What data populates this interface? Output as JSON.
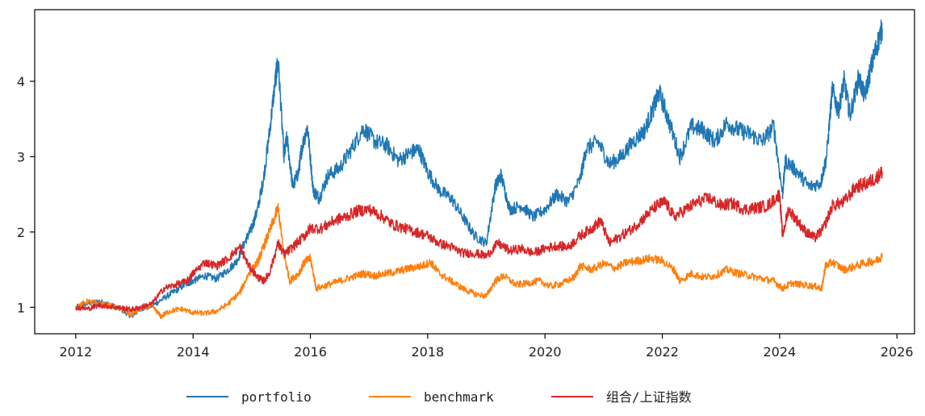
{
  "chart_data": {
    "type": "line",
    "title": "",
    "xlabel": "",
    "ylabel": "",
    "xlim": [
      2011.3,
      2026.3
    ],
    "ylim": [
      0.65,
      4.95
    ],
    "x_ticks": [
      2012,
      2014,
      2016,
      2018,
      2020,
      2022,
      2024,
      2026
    ],
    "x_tick_labels": [
      "2012",
      "2014",
      "2016",
      "2018",
      "2020",
      "2022",
      "2024",
      "2026"
    ],
    "y_ticks": [
      1,
      2,
      3,
      4
    ],
    "y_tick_labels": [
      "1",
      "2",
      "3",
      "4"
    ],
    "grid": false,
    "legend_position": "bottom-center",
    "series": [
      {
        "name": "portfolio",
        "color": "#1f77b4",
        "points": [
          [
            2012.0,
            1.0
          ],
          [
            2012.2,
            1.05
          ],
          [
            2012.4,
            1.08
          ],
          [
            2012.6,
            1.03
          ],
          [
            2012.8,
            0.96
          ],
          [
            2012.95,
            0.88
          ],
          [
            2013.1,
            0.98
          ],
          [
            2013.3,
            1.02
          ],
          [
            2013.5,
            1.12
          ],
          [
            2013.7,
            1.22
          ],
          [
            2013.9,
            1.32
          ],
          [
            2014.0,
            1.35
          ],
          [
            2014.2,
            1.42
          ],
          [
            2014.4,
            1.38
          ],
          [
            2014.6,
            1.5
          ],
          [
            2014.75,
            1.62
          ],
          [
            2014.9,
            1.9
          ],
          [
            2015.0,
            2.05
          ],
          [
            2015.1,
            2.3
          ],
          [
            2015.2,
            2.7
          ],
          [
            2015.3,
            3.3
          ],
          [
            2015.4,
            4.0
          ],
          [
            2015.45,
            4.28
          ],
          [
            2015.55,
            3.0
          ],
          [
            2015.6,
            3.25
          ],
          [
            2015.7,
            2.6
          ],
          [
            2015.8,
            2.8
          ],
          [
            2015.85,
            3.1
          ],
          [
            2015.95,
            3.4
          ],
          [
            2016.05,
            2.55
          ],
          [
            2016.15,
            2.45
          ],
          [
            2016.3,
            2.75
          ],
          [
            2016.5,
            2.85
          ],
          [
            2016.7,
            3.1
          ],
          [
            2016.9,
            3.38
          ],
          [
            2017.1,
            3.2
          ],
          [
            2017.3,
            3.15
          ],
          [
            2017.5,
            2.95
          ],
          [
            2017.7,
            3.05
          ],
          [
            2017.85,
            3.1
          ],
          [
            2018.0,
            2.8
          ],
          [
            2018.2,
            2.55
          ],
          [
            2018.4,
            2.45
          ],
          [
            2018.6,
            2.2
          ],
          [
            2018.8,
            1.95
          ],
          [
            2019.0,
            1.85
          ],
          [
            2019.15,
            2.6
          ],
          [
            2019.25,
            2.75
          ],
          [
            2019.4,
            2.3
          ],
          [
            2019.6,
            2.35
          ],
          [
            2019.8,
            2.2
          ],
          [
            2020.0,
            2.3
          ],
          [
            2020.2,
            2.5
          ],
          [
            2020.4,
            2.4
          ],
          [
            2020.6,
            2.7
          ],
          [
            2020.7,
            3.1
          ],
          [
            2020.9,
            3.2
          ],
          [
            2021.1,
            2.9
          ],
          [
            2021.3,
            3.0
          ],
          [
            2021.5,
            3.2
          ],
          [
            2021.7,
            3.35
          ],
          [
            2021.85,
            3.65
          ],
          [
            2021.95,
            3.85
          ],
          [
            2022.1,
            3.5
          ],
          [
            2022.3,
            3.0
          ],
          [
            2022.5,
            3.4
          ],
          [
            2022.7,
            3.35
          ],
          [
            2022.9,
            3.2
          ],
          [
            2023.1,
            3.45
          ],
          [
            2023.3,
            3.35
          ],
          [
            2023.5,
            3.3
          ],
          [
            2023.7,
            3.2
          ],
          [
            2023.9,
            3.4
          ],
          [
            2024.05,
            2.5
          ],
          [
            2024.1,
            2.95
          ],
          [
            2024.3,
            2.8
          ],
          [
            2024.5,
            2.6
          ],
          [
            2024.7,
            2.65
          ],
          [
            2024.8,
            3.0
          ],
          [
            2024.9,
            3.9
          ],
          [
            2025.0,
            3.6
          ],
          [
            2025.1,
            4.0
          ],
          [
            2025.2,
            3.55
          ],
          [
            2025.35,
            4.05
          ],
          [
            2025.45,
            3.8
          ],
          [
            2025.55,
            4.15
          ],
          [
            2025.65,
            4.45
          ],
          [
            2025.75,
            4.7
          ]
        ]
      },
      {
        "name": "benchmark",
        "color": "#ff7f0e",
        "points": [
          [
            2012.0,
            1.0
          ],
          [
            2012.2,
            1.08
          ],
          [
            2012.4,
            1.05
          ],
          [
            2012.6,
            1.02
          ],
          [
            2012.8,
            0.97
          ],
          [
            2012.95,
            0.9
          ],
          [
            2013.1,
            0.98
          ],
          [
            2013.3,
            1.02
          ],
          [
            2013.45,
            0.88
          ],
          [
            2013.6,
            0.95
          ],
          [
            2013.8,
            0.98
          ],
          [
            2014.0,
            0.93
          ],
          [
            2014.2,
            0.92
          ],
          [
            2014.4,
            0.95
          ],
          [
            2014.6,
            1.05
          ],
          [
            2014.8,
            1.2
          ],
          [
            2014.95,
            1.45
          ],
          [
            2015.1,
            1.6
          ],
          [
            2015.2,
            1.8
          ],
          [
            2015.3,
            2.0
          ],
          [
            2015.45,
            2.32
          ],
          [
            2015.55,
            1.7
          ],
          [
            2015.65,
            1.35
          ],
          [
            2015.8,
            1.45
          ],
          [
            2015.9,
            1.6
          ],
          [
            2016.0,
            1.65
          ],
          [
            2016.1,
            1.25
          ],
          [
            2016.3,
            1.3
          ],
          [
            2016.5,
            1.35
          ],
          [
            2016.7,
            1.4
          ],
          [
            2016.9,
            1.45
          ],
          [
            2017.1,
            1.42
          ],
          [
            2017.3,
            1.45
          ],
          [
            2017.5,
            1.48
          ],
          [
            2017.7,
            1.52
          ],
          [
            2017.9,
            1.55
          ],
          [
            2018.05,
            1.6
          ],
          [
            2018.2,
            1.45
          ],
          [
            2018.4,
            1.35
          ],
          [
            2018.6,
            1.25
          ],
          [
            2018.8,
            1.18
          ],
          [
            2019.0,
            1.15
          ],
          [
            2019.15,
            1.35
          ],
          [
            2019.3,
            1.42
          ],
          [
            2019.5,
            1.3
          ],
          [
            2019.7,
            1.32
          ],
          [
            2019.9,
            1.35
          ],
          [
            2020.1,
            1.28
          ],
          [
            2020.3,
            1.32
          ],
          [
            2020.5,
            1.4
          ],
          [
            2020.6,
            1.55
          ],
          [
            2020.8,
            1.5
          ],
          [
            2021.0,
            1.58
          ],
          [
            2021.2,
            1.52
          ],
          [
            2021.4,
            1.6
          ],
          [
            2021.6,
            1.62
          ],
          [
            2021.8,
            1.65
          ],
          [
            2022.0,
            1.62
          ],
          [
            2022.2,
            1.5
          ],
          [
            2022.3,
            1.35
          ],
          [
            2022.5,
            1.45
          ],
          [
            2022.7,
            1.4
          ],
          [
            2022.9,
            1.42
          ],
          [
            2023.1,
            1.5
          ],
          [
            2023.3,
            1.45
          ],
          [
            2023.5,
            1.42
          ],
          [
            2023.7,
            1.38
          ],
          [
            2023.9,
            1.35
          ],
          [
            2024.05,
            1.25
          ],
          [
            2024.2,
            1.32
          ],
          [
            2024.4,
            1.3
          ],
          [
            2024.6,
            1.28
          ],
          [
            2024.72,
            1.25
          ],
          [
            2024.78,
            1.55
          ],
          [
            2024.9,
            1.6
          ],
          [
            2025.1,
            1.5
          ],
          [
            2025.3,
            1.55
          ],
          [
            2025.5,
            1.6
          ],
          [
            2025.65,
            1.62
          ],
          [
            2025.75,
            1.68
          ]
        ]
      },
      {
        "name": "组合/上证指数",
        "color": "#d62728",
        "points": [
          [
            2012.0,
            1.0
          ],
          [
            2012.2,
            0.98
          ],
          [
            2012.4,
            1.03
          ],
          [
            2012.6,
            1.01
          ],
          [
            2012.8,
            0.99
          ],
          [
            2012.95,
            0.97
          ],
          [
            2013.1,
            1.0
          ],
          [
            2013.3,
            1.05
          ],
          [
            2013.5,
            1.25
          ],
          [
            2013.7,
            1.3
          ],
          [
            2013.9,
            1.35
          ],
          [
            2014.0,
            1.45
          ],
          [
            2014.2,
            1.6
          ],
          [
            2014.4,
            1.55
          ],
          [
            2014.6,
            1.65
          ],
          [
            2014.8,
            1.8
          ],
          [
            2014.95,
            1.55
          ],
          [
            2015.1,
            1.4
          ],
          [
            2015.2,
            1.35
          ],
          [
            2015.3,
            1.45
          ],
          [
            2015.45,
            1.85
          ],
          [
            2015.55,
            1.7
          ],
          [
            2015.7,
            1.8
          ],
          [
            2015.9,
            1.95
          ],
          [
            2016.0,
            2.05
          ],
          [
            2016.2,
            2.05
          ],
          [
            2016.4,
            2.15
          ],
          [
            2016.6,
            2.2
          ],
          [
            2016.8,
            2.28
          ],
          [
            2017.0,
            2.3
          ],
          [
            2017.2,
            2.22
          ],
          [
            2017.4,
            2.1
          ],
          [
            2017.6,
            2.05
          ],
          [
            2017.8,
            2.0
          ],
          [
            2018.0,
            1.95
          ],
          [
            2018.2,
            1.85
          ],
          [
            2018.4,
            1.8
          ],
          [
            2018.6,
            1.72
          ],
          [
            2018.8,
            1.72
          ],
          [
            2019.0,
            1.68
          ],
          [
            2019.2,
            1.85
          ],
          [
            2019.4,
            1.75
          ],
          [
            2019.6,
            1.78
          ],
          [
            2019.8,
            1.72
          ],
          [
            2020.0,
            1.78
          ],
          [
            2020.2,
            1.82
          ],
          [
            2020.4,
            1.8
          ],
          [
            2020.6,
            1.95
          ],
          [
            2020.8,
            2.05
          ],
          [
            2020.95,
            2.15
          ],
          [
            2021.1,
            1.85
          ],
          [
            2021.3,
            1.95
          ],
          [
            2021.5,
            2.05
          ],
          [
            2021.7,
            2.2
          ],
          [
            2021.9,
            2.35
          ],
          [
            2022.05,
            2.4
          ],
          [
            2022.2,
            2.2
          ],
          [
            2022.4,
            2.3
          ],
          [
            2022.6,
            2.4
          ],
          [
            2022.8,
            2.45
          ],
          [
            2023.0,
            2.35
          ],
          [
            2023.2,
            2.38
          ],
          [
            2023.4,
            2.3
          ],
          [
            2023.6,
            2.32
          ],
          [
            2023.8,
            2.35
          ],
          [
            2024.0,
            2.5
          ],
          [
            2024.05,
            1.95
          ],
          [
            2024.15,
            2.3
          ],
          [
            2024.3,
            2.15
          ],
          [
            2024.45,
            2.0
          ],
          [
            2024.6,
            1.92
          ],
          [
            2024.75,
            2.05
          ],
          [
            2024.9,
            2.35
          ],
          [
            2025.1,
            2.4
          ],
          [
            2025.3,
            2.6
          ],
          [
            2025.5,
            2.65
          ],
          [
            2025.65,
            2.72
          ],
          [
            2025.75,
            2.8
          ]
        ]
      }
    ]
  }
}
